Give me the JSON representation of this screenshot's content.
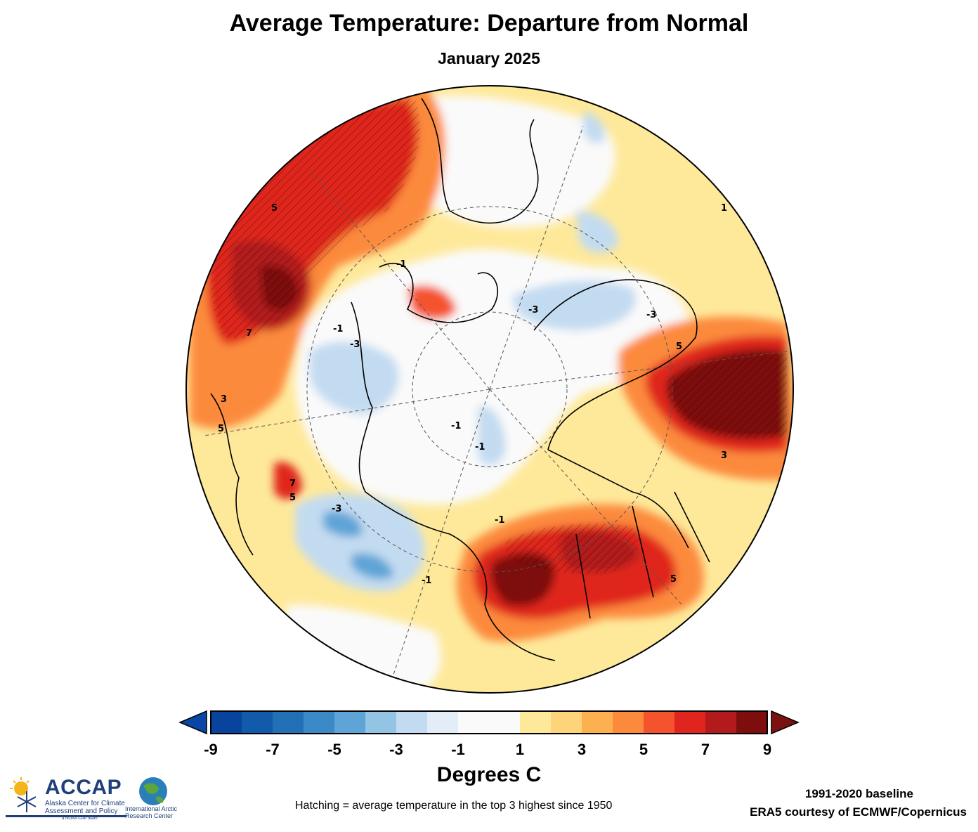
{
  "title": "Average Temperature: Departure from Normal",
  "subtitle": "January 2025",
  "colorbar": {
    "unit_label": "Degrees C",
    "tick_labels": [
      "-9",
      "-7",
      "-5",
      "-3",
      "-1",
      "1",
      "3",
      "5",
      "7",
      "9"
    ],
    "bins": [
      {
        "from": -9,
        "to": -8,
        "color": "#08449e"
      },
      {
        "from": -8,
        "to": -7,
        "color": "#125aaa"
      },
      {
        "from": -7,
        "to": -6,
        "color": "#2270b6"
      },
      {
        "from": -6,
        "to": -5,
        "color": "#3b89c6"
      },
      {
        "from": -5,
        "to": -4,
        "color": "#5ea4d6"
      },
      {
        "from": -4,
        "to": -3,
        "color": "#93c4e3"
      },
      {
        "from": -3,
        "to": -2,
        "color": "#c3dbf1"
      },
      {
        "from": -2,
        "to": -1,
        "color": "#e2edf8"
      },
      {
        "from": -1,
        "to": 1,
        "color": "#fafafa"
      },
      {
        "from": 1,
        "to": 2,
        "color": "#fee99a"
      },
      {
        "from": 2,
        "to": 3,
        "color": "#fed47a"
      },
      {
        "from": 3,
        "to": 4,
        "color": "#fdb050"
      },
      {
        "from": 4,
        "to": 5,
        "color": "#fc8a3c"
      },
      {
        "from": 5,
        "to": 6,
        "color": "#f5532e"
      },
      {
        "from": 6,
        "to": 7,
        "color": "#e0251f"
      },
      {
        "from": 7,
        "to": 8,
        "color": "#b31a1c"
      },
      {
        "from": 8,
        "to": 9,
        "color": "#7e0e0e"
      }
    ],
    "underflow_color": "#0a46a6",
    "overflow_color": "#7a1212"
  },
  "hatching_note": "Hatching = average temperature in the top 3 highest since 1950",
  "baseline": "1991-2020 baseline",
  "credit": "ERA5 courtesy of ECMWF/Copernicus",
  "logos": {
    "accap": {
      "name": "ACCAP",
      "subtitle": "Alaska Center for Climate Assessment and Policy",
      "tagline": "a NOAA CAP team"
    },
    "iarc": {
      "name": "International Arctic Research Center"
    }
  },
  "map": {
    "projection": "north-polar-stereographic",
    "contour_labels": [
      "5",
      "7",
      "3",
      "5",
      "-3",
      "-1",
      "-1",
      "-3",
      "5",
      "3",
      "-1",
      "-3",
      "-1",
      "7",
      "5",
      "-3",
      "-1",
      "1",
      "5",
      "-1"
    ]
  }
}
